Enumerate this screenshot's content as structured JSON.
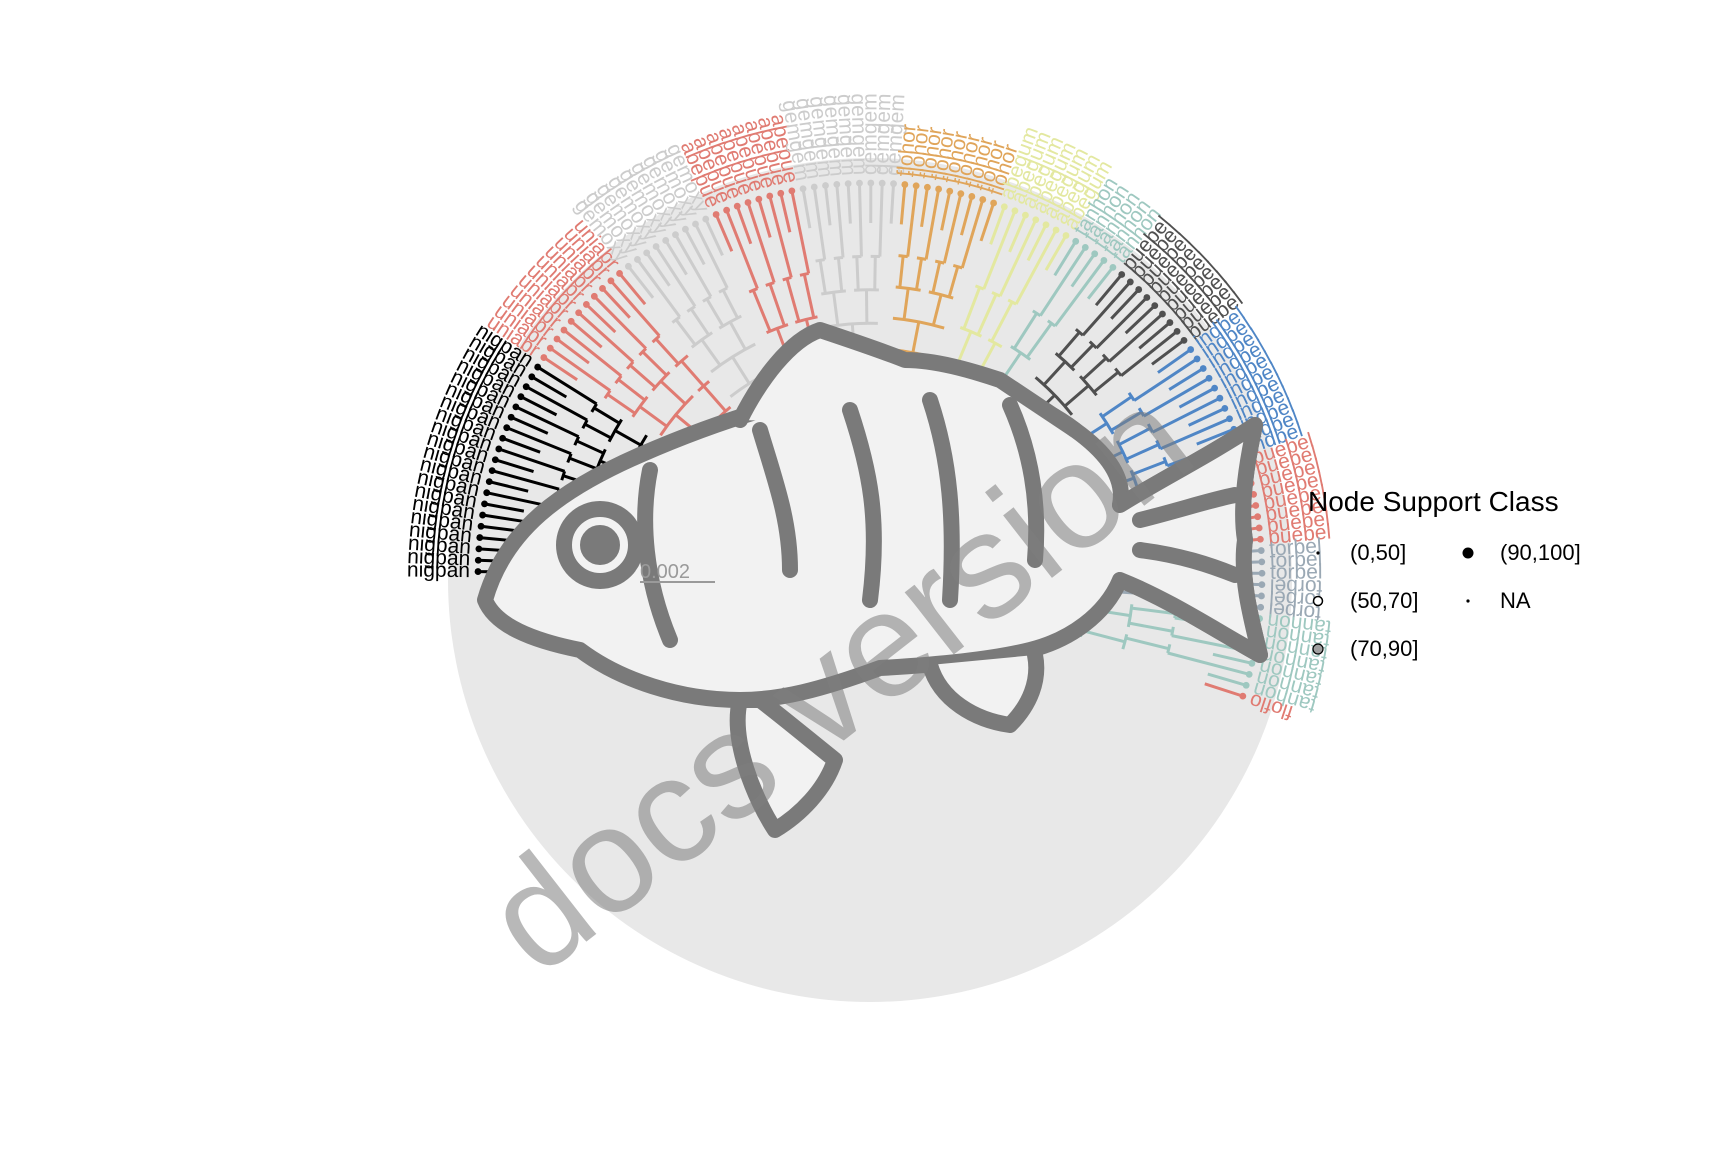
{
  "scale_label": "0.002",
  "watermark": "docs version",
  "legend": {
    "title": "Node Support Class",
    "items": [
      {
        "label": "(0,50]",
        "key": "dot-small"
      },
      {
        "label": "(90,100]",
        "key": "filled-black"
      },
      {
        "label": "(50,70]",
        "key": "open-white"
      },
      {
        "label": "NA",
        "key": "dot-small"
      },
      {
        "label": "(70,90]",
        "key": "filled-grey"
      }
    ]
  },
  "clades": [
    {
      "color": "#000000",
      "tips": [
        "nigpan",
        "nigpan",
        "nigpan",
        "nigpan",
        "nigpan",
        "nigpan",
        "nigpan",
        "nigpan",
        "nigpan",
        "nigpan",
        "nigpan",
        "nigpan",
        "nigpan",
        "nigpan",
        "nigpan",
        "nigpan",
        "nigpan",
        "nigpan",
        "nigpan",
        "nigpan"
      ]
    },
    {
      "color": "#e07b72",
      "tips": [
        "uniabr",
        "uniabr",
        "uniabr",
        "uniabr",
        "uniabr",
        "uniabr",
        "uniabr",
        "uniabr",
        "uniabr",
        "uniabr",
        "uniabr"
      ]
    },
    {
      "color": "#cccccc",
      "tips": [
        "gemoxy",
        "gemoxy",
        "gemoxy",
        "gemoxy",
        "gemoxy",
        "gemoxy",
        "gemoxy",
        "gemoxy",
        "gemoxy"
      ]
    },
    {
      "color": "#e07b72",
      "tips": [
        "abepue",
        "abepue",
        "abepue",
        "abepue",
        "abepue",
        "abepue",
        "abepue",
        "abepue"
      ]
    },
    {
      "color": "#cccccc",
      "tips": [
        "gemgem",
        "gemgem",
        "gemgem",
        "gemgem",
        "gemgem",
        "gemgem",
        "gemgem",
        "gemgem",
        "gemgem"
      ]
    },
    {
      "color": "#e0a55a",
      "tips": [
        "flohor",
        "flohor",
        "flohor",
        "flohor",
        "flohor",
        "flohor",
        "flohor",
        "flohor",
        "flohor"
      ]
    },
    {
      "color": "#e3e8a0",
      "tips": [
        "abegum",
        "abegum",
        "abegum",
        "abegum",
        "abegum",
        "abegum",
        "abegum"
      ]
    },
    {
      "color": "#9ec8c0",
      "tips": [
        "tanhon",
        "tanhon",
        "tanhon",
        "tanhon",
        "tanhon"
      ]
    },
    {
      "color": "#505050",
      "tips": [
        "puebel",
        "puebel",
        "puebel",
        "puebel",
        "puebel",
        "puebel",
        "puebel",
        "puebel",
        "puebel"
      ]
    },
    {
      "color": "#4f86c6",
      "tips": [
        "indbel",
        "indbel",
        "indbel",
        "indbel",
        "indbel",
        "indbel",
        "indbel",
        "indbel",
        "indbel",
        "indbel",
        "indbel"
      ]
    },
    {
      "color": "#e07b72",
      "tips": [
        "puebel",
        "puebel",
        "puebel",
        "puebel",
        "puebel",
        "puebel",
        "puebel",
        "puebel"
      ]
    },
    {
      "color": "#9aa8b4",
      "tips": [
        "torbel",
        "torbel",
        "torbel",
        "torbel",
        "torbel",
        "torbel"
      ]
    },
    {
      "color": "#9ec8c0",
      "tips": [
        "tanhon",
        "tanhon",
        "tanhon",
        "tanhon",
        "tanhon",
        "tanhon",
        "tanhon"
      ]
    },
    {
      "color": "#e07b72",
      "tips": [
        "floflo"
      ]
    }
  ]
}
